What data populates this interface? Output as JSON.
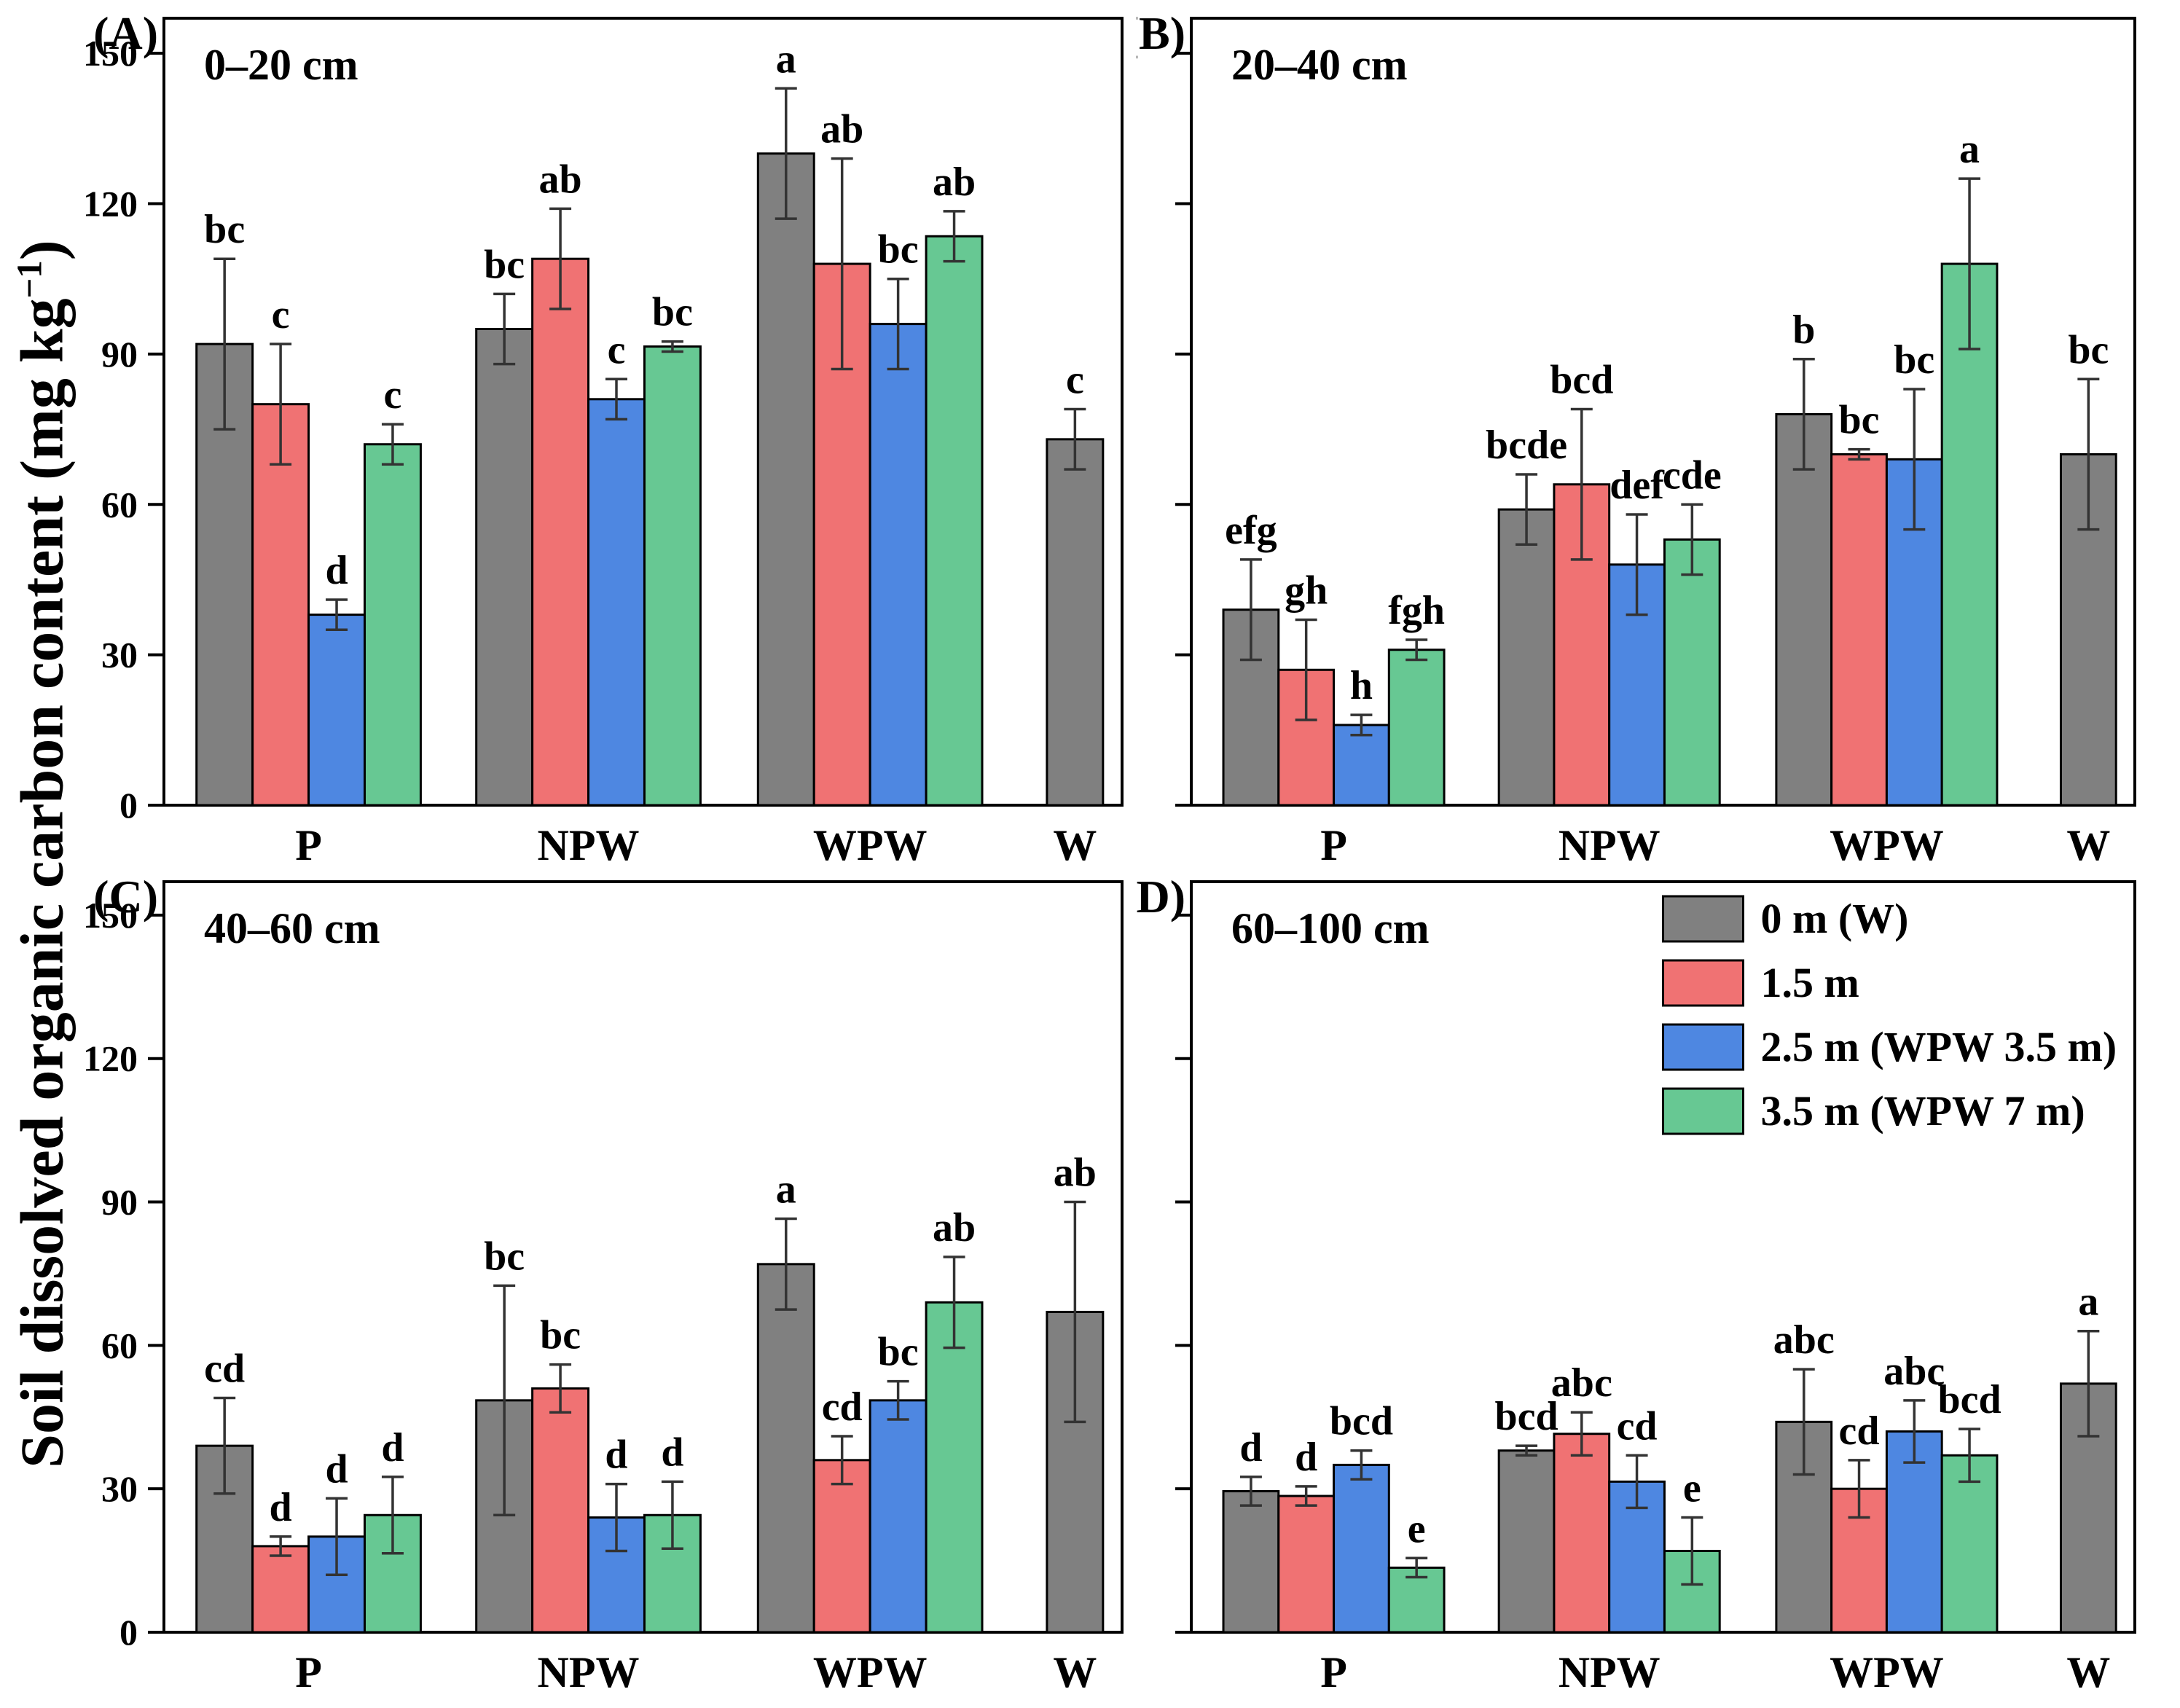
{
  "y_axis": {
    "label_prefix": "Soil dissolved organic carbon content (mg kg",
    "label_superscript": "−1",
    "label_suffix": ")",
    "ticks": [
      0,
      30,
      60,
      90,
      120,
      150
    ]
  },
  "legend": {
    "items": [
      {
        "label": "0 m (W)",
        "color": "#808080"
      },
      {
        "label": "1.5 m",
        "color": "#F07273"
      },
      {
        "label": "2.5 m (WPW 3.5 m)",
        "color": "#4E87E1"
      },
      {
        "label": "3.5 m (WPW 7 m)",
        "color": "#67C893"
      }
    ]
  },
  "chart_data": [
    {
      "type": "bar",
      "panel_label": "(A)",
      "title": "0–20 cm",
      "categories": [
        "P",
        "NPW",
        "WPW",
        "W"
      ],
      "ylim": [
        0,
        157
      ],
      "yticks": [
        0,
        30,
        60,
        90,
        120,
        150
      ],
      "show_ytick_labels": true,
      "show_legend": false,
      "series": [
        {
          "name": "0 m (W)",
          "color": "#808080",
          "values": [
            92,
            95,
            130,
            73
          ],
          "errors": [
            17,
            7,
            13,
            6
          ],
          "letters": [
            "bc",
            "bc",
            "a",
            "c"
          ]
        },
        {
          "name": "1.5 m",
          "color": "#F07273",
          "values": [
            80,
            109,
            108,
            null
          ],
          "errors": [
            12,
            10,
            21,
            null
          ],
          "letters": [
            "c",
            "ab",
            "ab",
            null
          ]
        },
        {
          "name": "2.5 m (WPW 3.5 m)",
          "color": "#4E87E1",
          "values": [
            38,
            81,
            96,
            null
          ],
          "errors": [
            3,
            4,
            9,
            null
          ],
          "letters": [
            "d",
            "c",
            "bc",
            null
          ]
        },
        {
          "name": "3.5 m (WPW 7 m)",
          "color": "#67C893",
          "values": [
            72,
            91.5,
            113.5,
            null
          ],
          "errors": [
            4,
            1,
            5,
            null
          ],
          "letters": [
            "c",
            "bc",
            "ab",
            null
          ]
        }
      ]
    },
    {
      "type": "bar",
      "panel_label": "(B)",
      "title": "20–40 cm",
      "categories": [
        "P",
        "NPW",
        "WPW",
        "W"
      ],
      "ylim": [
        0,
        157
      ],
      "yticks": [
        0,
        30,
        60,
        90,
        120,
        150
      ],
      "show_ytick_labels": false,
      "show_legend": false,
      "series": [
        {
          "name": "0 m (W)",
          "color": "#808080",
          "values": [
            39,
            59,
            78,
            70
          ],
          "errors": [
            10,
            7,
            11,
            15
          ],
          "letters": [
            "efg",
            "bcde",
            "b",
            "bc"
          ]
        },
        {
          "name": "1.5 m",
          "color": "#F07273",
          "values": [
            27,
            64,
            70,
            null
          ],
          "errors": [
            10,
            15,
            1,
            null
          ],
          "letters": [
            "gh",
            "bcd",
            "bc",
            null
          ]
        },
        {
          "name": "2.5 m (WPW 3.5 m)",
          "color": "#4E87E1",
          "values": [
            16,
            48,
            69,
            null
          ],
          "errors": [
            2,
            10,
            14,
            null
          ],
          "letters": [
            "h",
            "def",
            "bc",
            null
          ]
        },
        {
          "name": "3.5 m (WPW 7 m)",
          "color": "#67C893",
          "values": [
            31,
            53,
            108,
            null
          ],
          "errors": [
            2,
            7,
            17,
            null
          ],
          "letters": [
            "fgh",
            "cde",
            "a",
            null
          ]
        }
      ]
    },
    {
      "type": "bar",
      "panel_label": "(C)",
      "title": "40–60 cm",
      "categories": [
        "P",
        "NPW",
        "WPW",
        "W"
      ],
      "ylim": [
        0,
        157
      ],
      "yticks": [
        0,
        30,
        60,
        90,
        120,
        150
      ],
      "show_ytick_labels": true,
      "show_legend": false,
      "series": [
        {
          "name": "0 m (W)",
          "color": "#808080",
          "values": [
            39,
            48.5,
            77,
            67
          ],
          "errors": [
            10,
            24,
            9.5,
            23
          ],
          "letters": [
            "cd",
            "bc",
            "a",
            "ab"
          ]
        },
        {
          "name": "1.5 m",
          "color": "#F07273",
          "values": [
            18,
            51,
            36,
            null
          ],
          "errors": [
            2,
            5,
            5,
            null
          ],
          "letters": [
            "d",
            "bc",
            "cd",
            null
          ]
        },
        {
          "name": "2.5 m (WPW 3.5 m)",
          "color": "#4E87E1",
          "values": [
            20,
            24,
            48.5,
            null
          ],
          "errors": [
            8,
            7,
            4,
            null
          ],
          "letters": [
            "d",
            "d",
            "bc",
            null
          ]
        },
        {
          "name": "3.5 m (WPW 7 m)",
          "color": "#67C893",
          "values": [
            24.5,
            24.5,
            69,
            null
          ],
          "errors": [
            8,
            7,
            9.5,
            null
          ],
          "letters": [
            "d",
            "d",
            "ab",
            null
          ]
        }
      ]
    },
    {
      "type": "bar",
      "panel_label": "(D)",
      "title": "60–100 cm",
      "categories": [
        "P",
        "NPW",
        "WPW",
        "W"
      ],
      "ylim": [
        0,
        157
      ],
      "yticks": [
        0,
        30,
        60,
        90,
        120,
        150
      ],
      "show_ytick_labels": false,
      "show_legend": true,
      "series": [
        {
          "name": "0 m (W)",
          "color": "#808080",
          "values": [
            29.5,
            38,
            44,
            52
          ],
          "errors": [
            3,
            1,
            11,
            11
          ],
          "letters": [
            "d",
            "bcd",
            "abc",
            "a"
          ]
        },
        {
          "name": "1.5 m",
          "color": "#F07273",
          "values": [
            28.5,
            41.5,
            30,
            null
          ],
          "errors": [
            2,
            4.5,
            6,
            null
          ],
          "letters": [
            "d",
            "abc",
            "cd",
            null
          ]
        },
        {
          "name": "2.5 m (WPW 3.5 m)",
          "color": "#4E87E1",
          "values": [
            35,
            31.5,
            42,
            null
          ],
          "errors": [
            3,
            5.5,
            6.5,
            null
          ],
          "letters": [
            "bcd",
            "cd",
            "abc",
            null
          ]
        },
        {
          "name": "3.5 m (WPW 7 m)",
          "color": "#67C893",
          "values": [
            13.5,
            17,
            37,
            null
          ],
          "errors": [
            2,
            7,
            5.5,
            null
          ],
          "letters": [
            "e",
            "e",
            "bcd",
            null
          ]
        }
      ]
    }
  ]
}
